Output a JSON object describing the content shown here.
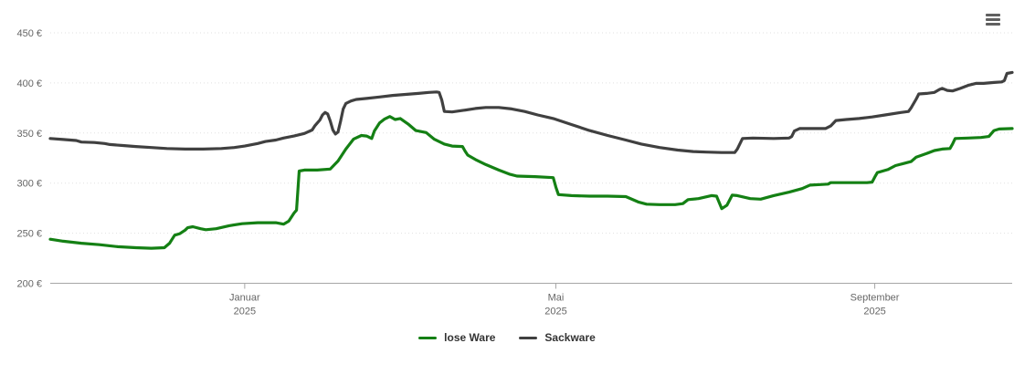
{
  "chart": {
    "background_color": "#ffffff",
    "axis_label_color": "#666666",
    "axis_line_color": "#a6a6a6",
    "grid_color": "#e0e0e0",
    "legend_text_color": "#333333",
    "menu_icon_color": "#606060"
  },
  "chart_data": {
    "type": "line",
    "title": "",
    "xlabel": "",
    "ylabel": "",
    "grid": "horizontal dotted",
    "legend_position": "bottom-center",
    "x_axis": {
      "type": "date",
      "min": "2024-10-18",
      "max": "2025-10-24",
      "ticks": [
        {
          "date": "2025-01-01",
          "line1": "Januar",
          "line2": "2025"
        },
        {
          "date": "2025-05-01",
          "line1": "Mai",
          "line2": "2025"
        },
        {
          "date": "2025-09-01",
          "line1": "September",
          "line2": "2025"
        }
      ]
    },
    "y_axis": {
      "min": 200,
      "max": 450,
      "tick_step": 50,
      "unit": "€",
      "ticks": [
        200,
        250,
        300,
        350,
        400,
        450
      ],
      "tick_labels": [
        "200 €",
        "250 €",
        "300 €",
        "350 €",
        "400 €",
        "450 €"
      ]
    },
    "series": [
      {
        "name": "lose Ware",
        "color": "#148014",
        "points": [
          [
            "2024-10-18",
            244
          ],
          [
            "2024-10-23",
            242
          ],
          [
            "2024-10-30",
            240
          ],
          [
            "2024-11-06",
            238.5
          ],
          [
            "2024-11-13",
            236.5
          ],
          [
            "2024-11-20",
            235.5
          ],
          [
            "2024-11-26",
            235
          ],
          [
            "2024-12-01",
            235.5
          ],
          [
            "2024-12-03",
            240
          ],
          [
            "2024-12-05",
            248
          ],
          [
            "2024-12-07",
            249.5
          ],
          [
            "2024-12-09",
            253
          ],
          [
            "2024-12-10",
            255.5
          ],
          [
            "2024-12-12",
            256.5
          ],
          [
            "2024-12-15",
            254.5
          ],
          [
            "2024-12-17",
            253.5
          ],
          [
            "2024-12-21",
            254.5
          ],
          [
            "2024-12-26",
            257.5
          ],
          [
            "2024-12-31",
            259.5
          ],
          [
            "2025-01-06",
            260.5
          ],
          [
            "2025-01-13",
            260.5
          ],
          [
            "2025-01-16",
            259
          ],
          [
            "2025-01-18",
            262
          ],
          [
            "2025-01-20",
            270
          ],
          [
            "2025-01-21",
            273
          ],
          [
            "2025-01-22",
            312
          ],
          [
            "2025-01-24",
            313
          ],
          [
            "2025-01-29",
            313
          ],
          [
            "2025-02-03",
            314
          ],
          [
            "2025-02-06",
            322
          ],
          [
            "2025-02-09",
            334
          ],
          [
            "2025-02-12",
            344
          ],
          [
            "2025-02-15",
            347.5
          ],
          [
            "2025-02-17",
            347
          ],
          [
            "2025-02-19",
            344.5
          ],
          [
            "2025-02-20",
            352
          ],
          [
            "2025-02-22",
            360
          ],
          [
            "2025-02-24",
            364
          ],
          [
            "2025-02-26",
            366.5
          ],
          [
            "2025-02-28",
            363.5
          ],
          [
            "2025-03-02",
            364.5
          ],
          [
            "2025-03-05",
            359
          ],
          [
            "2025-03-08",
            352.5
          ],
          [
            "2025-03-12",
            350.5
          ],
          [
            "2025-03-15",
            344
          ],
          [
            "2025-03-19",
            339
          ],
          [
            "2025-03-22",
            337
          ],
          [
            "2025-03-26",
            336.5
          ],
          [
            "2025-03-27",
            332
          ],
          [
            "2025-03-28",
            328
          ],
          [
            "2025-03-31",
            323.5
          ],
          [
            "2025-04-04",
            318.5
          ],
          [
            "2025-04-09",
            313
          ],
          [
            "2025-04-13",
            309
          ],
          [
            "2025-04-16",
            307
          ],
          [
            "2025-04-23",
            306.5
          ],
          [
            "2025-04-30",
            305.5
          ],
          [
            "2025-05-01",
            296
          ],
          [
            "2025-05-02",
            288.5
          ],
          [
            "2025-05-07",
            287.5
          ],
          [
            "2025-05-14",
            287
          ],
          [
            "2025-05-21",
            287
          ],
          [
            "2025-05-28",
            286.5
          ],
          [
            "2025-06-02",
            281
          ],
          [
            "2025-06-05",
            279
          ],
          [
            "2025-06-10",
            278.5
          ],
          [
            "2025-06-16",
            278.5
          ],
          [
            "2025-06-19",
            279.5
          ],
          [
            "2025-06-21",
            283.5
          ],
          [
            "2025-06-25",
            284.5
          ],
          [
            "2025-06-30",
            287.5
          ],
          [
            "2025-07-02",
            287
          ],
          [
            "2025-07-04",
            274.5
          ],
          [
            "2025-07-06",
            278
          ],
          [
            "2025-07-08",
            288
          ],
          [
            "2025-07-10",
            287.5
          ],
          [
            "2025-07-15",
            284.5
          ],
          [
            "2025-07-19",
            284
          ],
          [
            "2025-07-24",
            287.5
          ],
          [
            "2025-07-30",
            291
          ],
          [
            "2025-08-04",
            294.5
          ],
          [
            "2025-08-07",
            298
          ],
          [
            "2025-08-11",
            298.5
          ],
          [
            "2025-08-14",
            299
          ],
          [
            "2025-08-15",
            300.5
          ],
          [
            "2025-08-22",
            300.5
          ],
          [
            "2025-08-29",
            300.5
          ],
          [
            "2025-08-31",
            301
          ],
          [
            "2025-09-01",
            306
          ],
          [
            "2025-09-02",
            310.5
          ],
          [
            "2025-09-06",
            313.5
          ],
          [
            "2025-09-09",
            317.5
          ],
          [
            "2025-09-12",
            319.5
          ],
          [
            "2025-09-15",
            321.5
          ],
          [
            "2025-09-17",
            326
          ],
          [
            "2025-09-21",
            329.5
          ],
          [
            "2025-09-24",
            332.5
          ],
          [
            "2025-09-27",
            334
          ],
          [
            "2025-09-30",
            334.5
          ],
          [
            "2025-10-01",
            339
          ],
          [
            "2025-10-02",
            344.5
          ],
          [
            "2025-10-07",
            345
          ],
          [
            "2025-10-12",
            345.5
          ],
          [
            "2025-10-15",
            346.5
          ],
          [
            "2025-10-17",
            352.5
          ],
          [
            "2025-10-19",
            354
          ],
          [
            "2025-10-24",
            354.5
          ]
        ]
      },
      {
        "name": "Sackware",
        "color": "#404040",
        "points": [
          [
            "2024-10-18",
            344.5
          ],
          [
            "2024-10-23",
            343.5
          ],
          [
            "2024-10-28",
            342.5
          ],
          [
            "2024-10-30",
            341
          ],
          [
            "2024-11-04",
            340.5
          ],
          [
            "2024-11-08",
            339.5
          ],
          [
            "2024-11-10",
            338.5
          ],
          [
            "2024-11-15",
            337.5
          ],
          [
            "2024-11-20",
            336.5
          ],
          [
            "2024-11-26",
            335.5
          ],
          [
            "2024-12-02",
            334.5
          ],
          [
            "2024-12-09",
            334
          ],
          [
            "2024-12-16",
            334
          ],
          [
            "2024-12-23",
            334.5
          ],
          [
            "2024-12-28",
            335.5
          ],
          [
            "2025-01-01",
            337
          ],
          [
            "2025-01-06",
            339.5
          ],
          [
            "2025-01-09",
            341.5
          ],
          [
            "2025-01-13",
            343
          ],
          [
            "2025-01-16",
            345
          ],
          [
            "2025-01-20",
            347
          ],
          [
            "2025-01-24",
            349.5
          ],
          [
            "2025-01-27",
            353
          ],
          [
            "2025-01-28",
            357
          ],
          [
            "2025-01-30",
            363
          ],
          [
            "2025-01-31",
            368
          ],
          [
            "2025-02-01",
            370.5
          ],
          [
            "2025-02-02",
            369
          ],
          [
            "2025-02-03",
            362
          ],
          [
            "2025-02-04",
            353
          ],
          [
            "2025-02-05",
            349
          ],
          [
            "2025-02-06",
            351
          ],
          [
            "2025-02-07",
            362
          ],
          [
            "2025-02-08",
            374
          ],
          [
            "2025-02-09",
            379.5
          ],
          [
            "2025-02-11",
            382
          ],
          [
            "2025-02-13",
            383.5
          ],
          [
            "2025-02-17",
            384.5
          ],
          [
            "2025-02-22",
            386
          ],
          [
            "2025-02-27",
            387.5
          ],
          [
            "2025-03-04",
            388.5
          ],
          [
            "2025-03-09",
            389.5
          ],
          [
            "2025-03-13",
            390.5
          ],
          [
            "2025-03-16",
            391
          ],
          [
            "2025-03-17",
            390.5
          ],
          [
            "2025-03-18",
            383
          ],
          [
            "2025-03-19",
            371.5
          ],
          [
            "2025-03-22",
            371
          ],
          [
            "2025-03-26",
            372.5
          ],
          [
            "2025-03-31",
            374.5
          ],
          [
            "2025-04-04",
            375.5
          ],
          [
            "2025-04-09",
            375.5
          ],
          [
            "2025-04-14",
            374
          ],
          [
            "2025-04-19",
            371.5
          ],
          [
            "2025-04-24",
            368
          ],
          [
            "2025-04-30",
            364.5
          ],
          [
            "2025-05-07",
            358.5
          ],
          [
            "2025-05-14",
            352.5
          ],
          [
            "2025-05-21",
            347.5
          ],
          [
            "2025-05-28",
            343
          ],
          [
            "2025-06-03",
            339
          ],
          [
            "2025-06-10",
            335.5
          ],
          [
            "2025-06-17",
            333
          ],
          [
            "2025-06-23",
            331.5
          ],
          [
            "2025-06-28",
            331
          ],
          [
            "2025-07-04",
            330.5
          ],
          [
            "2025-07-09",
            330.5
          ],
          [
            "2025-07-10",
            334
          ],
          [
            "2025-07-12",
            344.5
          ],
          [
            "2025-07-16",
            345
          ],
          [
            "2025-07-24",
            344.5
          ],
          [
            "2025-07-30",
            345
          ],
          [
            "2025-07-31",
            346.5
          ],
          [
            "2025-08-01",
            352
          ],
          [
            "2025-08-03",
            354.5
          ],
          [
            "2025-08-08",
            354.5
          ],
          [
            "2025-08-13",
            354.5
          ],
          [
            "2025-08-15",
            357
          ],
          [
            "2025-08-17",
            362.5
          ],
          [
            "2025-08-21",
            363.5
          ],
          [
            "2025-08-26",
            364.5
          ],
          [
            "2025-08-31",
            366
          ],
          [
            "2025-09-05",
            368
          ],
          [
            "2025-09-11",
            370.5
          ],
          [
            "2025-09-14",
            371.5
          ],
          [
            "2025-09-15",
            375
          ],
          [
            "2025-09-17",
            384
          ],
          [
            "2025-09-18",
            389
          ],
          [
            "2025-09-21",
            389.5
          ],
          [
            "2025-09-24",
            390.5
          ],
          [
            "2025-09-26",
            393.5
          ],
          [
            "2025-09-27",
            394.5
          ],
          [
            "2025-09-29",
            392.5
          ],
          [
            "2025-10-01",
            392
          ],
          [
            "2025-10-04",
            394.5
          ],
          [
            "2025-10-07",
            397.5
          ],
          [
            "2025-10-10",
            399.5
          ],
          [
            "2025-10-13",
            399.5
          ],
          [
            "2025-10-17",
            400.5
          ],
          [
            "2025-10-20",
            401
          ],
          [
            "2025-10-21",
            402.5
          ],
          [
            "2025-10-22",
            409.5
          ],
          [
            "2025-10-24",
            410.5
          ]
        ]
      }
    ]
  }
}
